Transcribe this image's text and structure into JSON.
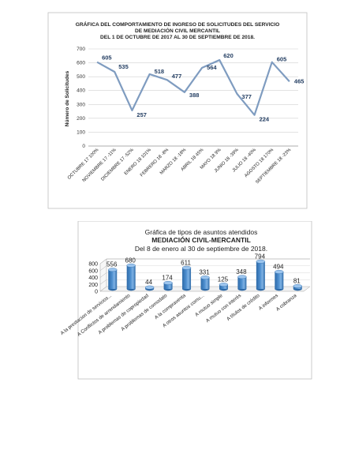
{
  "chart_data": [
    {
      "type": "line",
      "title_lines": [
        "GRÁFICA DEL COMPORTAMIENTO DE  INGRESO DE SOLICITUDES DEL SERVICIO",
        "DE MEDIACIÓN CIVIL MERCANTIL",
        "DEL  1  DE  OCTUBRE DE 2017  AL 30  DE  SEPTIEMBRE DE 2018."
      ],
      "ylabel": "Número de Solicitudes",
      "ylim": [
        0,
        700
      ],
      "yticks": [
        "0",
        "100",
        "200",
        "300",
        "400",
        "500",
        "600",
        "700"
      ],
      "grid": true,
      "categories": [
        "OCTUBRE  17  100%",
        "NOVIEMBRE 17  -11%",
        "DICIEMBRE  17  -52%",
        "ENERO  18  101%",
        "FEBRERO 18  -8%",
        "MARZO  18  -18%",
        "ABRIL  18  45%",
        "MAYO 18  9%",
        "JUNIO  18  -39%",
        "JULIO  18  -40%",
        "AGOSTO  18  170%",
        "SEPTIEMBRE  18  -23%"
      ],
      "values": [
        605,
        535,
        257,
        518,
        477,
        388,
        564,
        620,
        377,
        224,
        605,
        465
      ],
      "data_labels": [
        "605",
        "535",
        "257",
        "518",
        "477",
        "388",
        "564",
        "620",
        "377",
        "224",
        "605",
        "465"
      ],
      "line_color": "#7f9cc0",
      "label_color": "#1f3a5f"
    },
    {
      "type": "bar",
      "style": "3d-cylinder",
      "title_lines": [
        "Gráfica de tipos de asuntos atendidos",
        "MEDIACIÓN CIVIL-MERCANTIL",
        "Del  8  de enero al  30  de  septiembre  de  2018."
      ],
      "ylim": [
        0,
        800
      ],
      "yticks": [
        "0",
        "200",
        "400",
        "600",
        "800"
      ],
      "categories": [
        "A la prestacion de servicios...",
        "A Conflictos de arrendamiento",
        "A problemas de copropiedad",
        "A problemas de comodato",
        "A la compraventa",
        "A otros asuntos comu...",
        "A mutuo simple",
        "A mutuo con interés",
        "A títulos de crédito",
        "A informes",
        "A cobranza"
      ],
      "values": [
        556,
        680,
        44,
        174,
        611,
        331,
        125,
        348,
        794,
        494,
        81
      ],
      "data_labels": [
        "556",
        "680",
        "44",
        "174",
        "611",
        "331",
        "125",
        "348",
        "794",
        "494",
        "81"
      ],
      "bar_color": "#4f90d0"
    }
  ]
}
